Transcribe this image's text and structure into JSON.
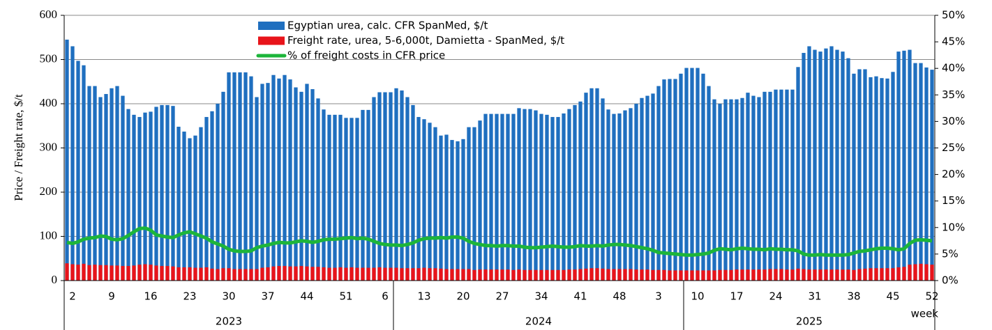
{
  "chart_data": {
    "type": "bar-line",
    "y_label": "Price / Freight rate, $/t",
    "x_label": "week",
    "categories": [
      null,
      "2",
      null,
      null,
      null,
      null,
      null,
      null,
      "9",
      null,
      null,
      null,
      null,
      null,
      null,
      "16",
      null,
      null,
      null,
      null,
      null,
      null,
      "23",
      null,
      null,
      null,
      null,
      null,
      null,
      "30",
      null,
      null,
      null,
      null,
      null,
      null,
      "37",
      null,
      null,
      null,
      null,
      null,
      null,
      "44",
      null,
      null,
      null,
      null,
      null,
      null,
      "51",
      null,
      null,
      null,
      null,
      null,
      null,
      "6",
      null,
      null,
      null,
      null,
      null,
      null,
      "13",
      null,
      null,
      null,
      null,
      null,
      null,
      "20",
      null,
      null,
      null,
      null,
      null,
      null,
      "27",
      null,
      null,
      null,
      null,
      null,
      null,
      "34",
      null,
      null,
      null,
      null,
      null,
      null,
      "41",
      null,
      null,
      null,
      null,
      null,
      null,
      "48",
      null,
      null,
      null,
      null,
      null,
      null,
      "3",
      null,
      null,
      null,
      null,
      null,
      null,
      "10",
      null,
      null,
      null,
      null,
      null,
      null,
      "17",
      null,
      null,
      null,
      null,
      null,
      null,
      "24",
      null,
      null,
      null,
      null,
      null,
      null,
      "31",
      null,
      null,
      null,
      null,
      null,
      null,
      "38",
      null,
      null,
      null,
      null,
      null,
      null,
      "45",
      null,
      null,
      null,
      null,
      null,
      null,
      "52"
    ],
    "groups": [
      {
        "label": "2023",
        "count": 59
      },
      {
        "label": "2024",
        "count": 52
      },
      {
        "label": "2025",
        "count": 45
      }
    ],
    "series": [
      {
        "name": "Egyptian urea, calc. CFR SpanMed, $/t",
        "color": "#1f6fbf",
        "kind": "bar",
        "values": [
          545,
          530,
          497,
          487,
          440,
          440,
          415,
          422,
          435,
          440,
          418,
          388,
          375,
          370,
          380,
          382,
          393,
          397,
          397,
          395,
          348,
          337,
          322,
          328,
          347,
          370,
          383,
          400,
          427,
          471,
          471,
          471,
          471,
          462,
          415,
          445,
          447,
          465,
          457,
          465,
          455,
          437,
          427,
          445,
          433,
          412,
          387,
          375,
          375,
          375,
          368,
          368,
          368,
          386,
          386,
          415,
          426,
          426,
          426,
          435,
          430,
          415,
          397,
          370,
          365,
          357,
          347,
          328,
          330,
          318,
          315,
          320,
          347,
          347,
          362,
          377,
          377,
          377,
          377,
          377,
          377,
          390,
          388,
          388,
          385,
          377,
          375,
          370,
          370,
          378,
          388,
          397,
          405,
          425,
          435,
          435,
          412,
          387,
          377,
          378,
          385,
          390,
          400,
          413,
          418,
          423,
          440,
          455,
          456,
          456,
          468,
          481,
          481,
          481,
          468,
          440,
          410,
          400,
          410,
          410,
          410,
          413,
          425,
          418,
          415,
          427,
          427,
          432,
          432,
          432,
          432,
          483,
          515,
          530,
          522,
          518,
          525,
          530,
          522,
          518,
          503,
          468,
          478,
          478,
          460,
          462,
          458,
          457,
          472,
          518,
          520,
          522,
          492,
          492,
          482,
          477
        ]
      },
      {
        "name": "Freight rate, urea, 5-6,000t, Damietta - SpanMed, $/t",
        "color": "#e8141a",
        "kind": "bar",
        "values": [
          39,
          37,
          36,
          38,
          35,
          36,
          35,
          35,
          34,
          34,
          33,
          33,
          34,
          36,
          37,
          36,
          34,
          33,
          33,
          32,
          30,
          30,
          30,
          29,
          29,
          30,
          27,
          26,
          28,
          28,
          26,
          26,
          26,
          26,
          26,
          29,
          30,
          32,
          33,
          33,
          32,
          32,
          33,
          32,
          31,
          31,
          30,
          29,
          29,
          30,
          29,
          30,
          29,
          29,
          29,
          29,
          30,
          29,
          29,
          29,
          28,
          28,
          28,
          28,
          29,
          28,
          28,
          27,
          26,
          26,
          26,
          26,
          26,
          24,
          25,
          25,
          25,
          25,
          25,
          25,
          24,
          25,
          24,
          24,
          24,
          24,
          24,
          24,
          24,
          24,
          25,
          25,
          26,
          27,
          28,
          28,
          27,
          26,
          26,
          26,
          26,
          26,
          25,
          25,
          25,
          24,
          24,
          24,
          23,
          23,
          23,
          23,
          23,
          23,
          23,
          23,
          23,
          24,
          24,
          24,
          25,
          25,
          25,
          25,
          25,
          25,
          26,
          26,
          26,
          25,
          25,
          27,
          26,
          25,
          25,
          25,
          25,
          25,
          25,
          25,
          25,
          24,
          26,
          27,
          28,
          28,
          28,
          28,
          28,
          30,
          31,
          36,
          37,
          38,
          37,
          36
        ]
      },
      {
        "name": "% of freight costs in CFR price",
        "color": "#1db53a",
        "kind": "line",
        "axis": "y2",
        "values": [
          7.2,
          7.0,
          7.3,
          7.8,
          8.0,
          8.1,
          8.4,
          8.3,
          7.8,
          7.7,
          7.9,
          8.5,
          9.2,
          9.8,
          9.9,
          9.5,
          8.6,
          8.4,
          8.2,
          8.1,
          8.6,
          9.0,
          9.2,
          8.8,
          8.4,
          8.0,
          7.3,
          6.9,
          6.5,
          5.9,
          5.6,
          5.5,
          5.5,
          5.6,
          6.2,
          6.5,
          6.7,
          7.0,
          7.2,
          7.1,
          7.1,
          7.3,
          7.5,
          7.4,
          7.2,
          7.4,
          7.7,
          7.8,
          7.8,
          7.9,
          8.0,
          8.1,
          7.9,
          8.0,
          7.8,
          7.4,
          7.0,
          6.8,
          6.7,
          6.7,
          6.6,
          6.8,
          7.1,
          7.6,
          7.9,
          8.0,
          8.0,
          8.1,
          8.0,
          8.2,
          8.2,
          8.0,
          7.4,
          7.0,
          6.8,
          6.6,
          6.6,
          6.5,
          6.6,
          6.6,
          6.5,
          6.5,
          6.3,
          6.2,
          6.2,
          6.3,
          6.4,
          6.5,
          6.4,
          6.3,
          6.3,
          6.4,
          6.6,
          6.5,
          6.5,
          6.6,
          6.5,
          6.7,
          6.8,
          6.8,
          6.7,
          6.6,
          6.4,
          6.2,
          6.0,
          5.7,
          5.3,
          5.2,
          5.1,
          5.0,
          4.9,
          4.8,
          4.8,
          4.9,
          5.0,
          5.2,
          5.7,
          6.0,
          5.9,
          5.8,
          6.0,
          6.1,
          6.0,
          5.9,
          5.9,
          5.8,
          6.0,
          5.9,
          5.9,
          5.8,
          5.8,
          5.6,
          5.0,
          4.8,
          4.8,
          4.9,
          4.8,
          4.8,
          4.8,
          4.8,
          4.9,
          5.2,
          5.5,
          5.6,
          5.8,
          6.0,
          6.1,
          6.1,
          6.0,
          5.8,
          6.0,
          7.0,
          7.6,
          7.7,
          7.6,
          7.5
        ]
      }
    ],
    "ylim": [
      0,
      600
    ],
    "yticks": [
      0,
      100,
      200,
      300,
      400,
      500,
      600
    ],
    "y2lim": [
      0,
      50
    ],
    "y2ticks": [
      {
        "value": 0,
        "label": "0%"
      },
      {
        "value": 5,
        "label": "5%"
      },
      {
        "value": 10,
        "label": "10%"
      },
      {
        "value": 15,
        "label": "15%"
      },
      {
        "value": 20,
        "label": "20%"
      },
      {
        "value": 25,
        "label": "25%"
      },
      {
        "value": 30,
        "label": "30%"
      },
      {
        "value": 35,
        "label": "35%"
      },
      {
        "value": 40,
        "label": "40%"
      },
      {
        "value": 45,
        "label": "45%"
      },
      {
        "value": 50,
        "label": "50%"
      }
    ],
    "grid": true
  }
}
